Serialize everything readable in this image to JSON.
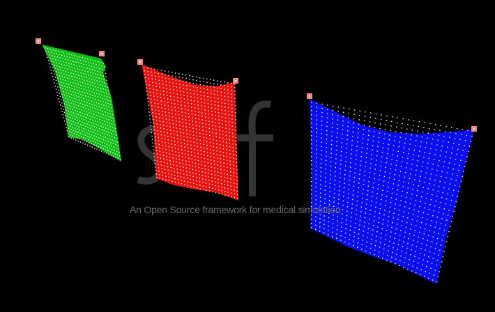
{
  "viewer": {
    "background": "#000000",
    "watermark": {
      "logo_text": "sofa",
      "tagline": "An Open Source framework for medical simulation",
      "color": "#6a6a6a"
    },
    "cloths": [
      {
        "name": "green",
        "fill": "#0fbf14",
        "dot": "#ffffff"
      },
      {
        "name": "red",
        "fill": "#e8120f",
        "dot": "#ffffff"
      },
      {
        "name": "blue",
        "fill": "#0a0ff0",
        "dot": "#ffffff"
      }
    ],
    "fixed_point_color": "#f08a8a",
    "fixed_point_core": "#ffffff"
  }
}
